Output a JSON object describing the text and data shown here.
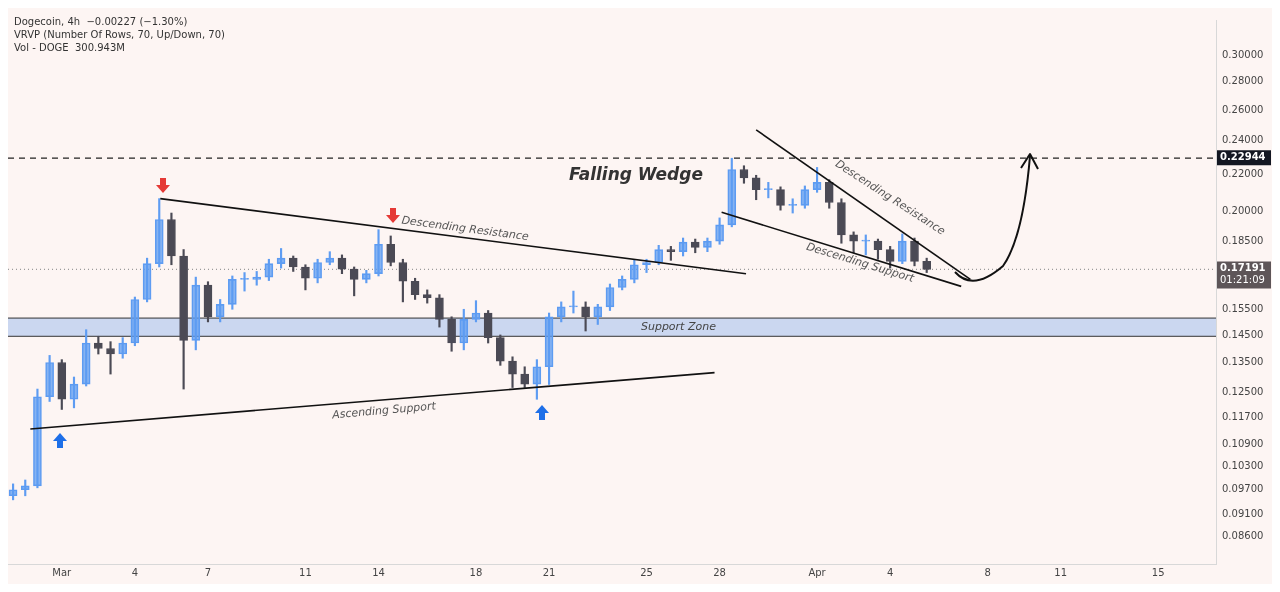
{
  "chart_data": {
    "type": "candlestick",
    "title": "Dogecoin, 4h  −0.00227 (−1.30%)",
    "x": [
      "--02-28T00:00",
      "--02-28T12:00",
      "--02-29T00:00",
      "--02-29T12:00",
      "--03-01T00:00",
      "--03-01T12:00",
      "--03-02T00:00",
      "--03-02T12:00",
      "--03-03T00:00",
      "--03-03T12:00",
      "--03-04T00:00",
      "--03-04T12:00",
      "--03-05T00:00",
      "--03-05T12:00",
      "--03-06T00:00",
      "--03-06T12:00",
      "--03-07T00:00",
      "--03-07T12:00",
      "--03-08T00:00",
      "--03-08T12:00",
      "--03-09T00:00",
      "--03-09T12:00",
      "--03-10T00:00",
      "--03-10T12:00",
      "--03-11T00:00",
      "--03-11T12:00",
      "--03-12T00:00",
      "--03-12T12:00",
      "--03-13T00:00",
      "--03-13T12:00",
      "--03-14T00:00",
      "--03-14T12:00",
      "--03-15T00:00",
      "--03-15T12:00",
      "--03-16T00:00",
      "--03-16T12:00",
      "--03-17T00:00",
      "--03-17T12:00",
      "--03-18T00:00",
      "--03-18T12:00",
      "--03-19T00:00",
      "--03-19T12:00",
      "--03-20T00:00",
      "--03-20T12:00",
      "--03-21T00:00",
      "--03-21T12:00",
      "--03-22T00:00",
      "--03-22T12:00",
      "--03-23T00:00",
      "--03-23T12:00",
      "--03-24T00:00",
      "--03-24T12:00",
      "--03-25T00:00",
      "--03-25T12:00",
      "--03-26T00:00",
      "--03-26T12:00",
      "--03-27T00:00",
      "--03-27T12:00",
      "--03-28T00:00",
      "--03-28T12:00",
      "--03-29T00:00",
      "--03-29T12:00",
      "--03-30T00:00",
      "--03-30T12:00",
      "--03-31T00:00",
      "--03-31T12:00",
      "--04-01T00:00",
      "--04-01T12:00",
      "--04-02T00:00",
      "--04-02T12:00",
      "--04-03T00:00",
      "--04-03T12:00",
      "--04-04T00:00",
      "--04-04T12:00",
      "--04-05T00:00",
      "--04-05T12:00"
    ],
    "ohlc": [
      [
        0.0955,
        0.0985,
        0.0945,
        0.097
      ],
      [
        0.097,
        0.0995,
        0.0955,
        0.098
      ],
      [
        0.098,
        0.126,
        0.0975,
        0.1235
      ],
      [
        0.1235,
        0.1375,
        0.122,
        0.135
      ],
      [
        0.135,
        0.136,
        0.1195,
        0.1227
      ],
      [
        0.1227,
        0.13,
        0.12,
        0.1276
      ],
      [
        0.1276,
        0.147,
        0.127,
        0.142
      ],
      [
        0.142,
        0.1445,
        0.138,
        0.14
      ],
      [
        0.14,
        0.1425,
        0.131,
        0.138
      ],
      [
        0.138,
        0.144,
        0.1365,
        0.142
      ],
      [
        0.142,
        0.16,
        0.141,
        0.159
      ],
      [
        0.159,
        0.177,
        0.158,
        0.1745
      ],
      [
        0.1745,
        0.2066,
        0.173,
        0.1957
      ],
      [
        0.1957,
        0.199,
        0.174,
        0.178
      ],
      [
        0.178,
        0.181,
        0.126,
        0.143
      ],
      [
        0.143,
        0.1685,
        0.1395,
        0.165
      ],
      [
        0.165,
        0.1665,
        0.15,
        0.152
      ],
      [
        0.152,
        0.159,
        0.15,
        0.157
      ],
      [
        0.157,
        0.169,
        0.155,
        0.1675
      ],
      [
        0.1675,
        0.1705,
        0.1625,
        0.1675
      ],
      [
        0.1675,
        0.171,
        0.165,
        0.1685
      ],
      [
        0.1685,
        0.1765,
        0.167,
        0.1745
      ],
      [
        0.1745,
        0.1815,
        0.1725,
        0.177
      ],
      [
        0.177,
        0.178,
        0.171,
        0.173
      ],
      [
        0.173,
        0.174,
        0.163,
        0.168
      ],
      [
        0.168,
        0.1765,
        0.166,
        0.175
      ],
      [
        0.175,
        0.18,
        0.174,
        0.177
      ],
      [
        0.177,
        0.1785,
        0.17,
        0.172
      ],
      [
        0.172,
        0.173,
        0.1605,
        0.1675
      ],
      [
        0.1675,
        0.1715,
        0.166,
        0.17
      ],
      [
        0.17,
        0.1906,
        0.169,
        0.1835
      ],
      [
        0.1835,
        0.1875,
        0.1735,
        0.175
      ],
      [
        0.175,
        0.1765,
        0.158,
        0.1667
      ],
      [
        0.1667,
        0.168,
        0.159,
        0.161
      ],
      [
        0.161,
        0.163,
        0.1575,
        0.1597
      ],
      [
        0.1597,
        0.161,
        0.148,
        0.151
      ],
      [
        0.151,
        0.152,
        0.139,
        0.142
      ],
      [
        0.142,
        0.155,
        0.1395,
        0.151
      ],
      [
        0.151,
        0.1585,
        0.15,
        0.1535
      ],
      [
        0.1535,
        0.1545,
        0.142,
        0.144
      ],
      [
        0.144,
        0.145,
        0.134,
        0.1355
      ],
      [
        0.1355,
        0.137,
        0.1265,
        0.131
      ],
      [
        0.131,
        0.1335,
        0.1265,
        0.1276
      ],
      [
        0.1276,
        0.136,
        0.1227,
        0.1335
      ],
      [
        0.1335,
        0.1535,
        0.1275,
        0.152
      ],
      [
        0.152,
        0.158,
        0.15,
        0.156
      ],
      [
        0.156,
        0.1625,
        0.1535,
        0.156
      ],
      [
        0.156,
        0.158,
        0.1465,
        0.152
      ],
      [
        0.152,
        0.157,
        0.149,
        0.156
      ],
      [
        0.156,
        0.1655,
        0.1545,
        0.164
      ],
      [
        0.164,
        0.169,
        0.163,
        0.1675
      ],
      [
        0.1675,
        0.176,
        0.166,
        0.174
      ],
      [
        0.174,
        0.1765,
        0.1705,
        0.175
      ],
      [
        0.175,
        0.183,
        0.174,
        0.181
      ],
      [
        0.181,
        0.1825,
        0.176,
        0.18
      ],
      [
        0.18,
        0.1865,
        0.178,
        0.1845
      ],
      [
        0.1845,
        0.186,
        0.1795,
        0.182
      ],
      [
        0.182,
        0.1865,
        0.18,
        0.185
      ],
      [
        0.185,
        0.1965,
        0.1835,
        0.193
      ],
      [
        0.193,
        0.22944,
        0.192,
        0.2228
      ],
      [
        0.2228,
        0.225,
        0.215,
        0.218
      ],
      [
        0.218,
        0.2195,
        0.206,
        0.2115
      ],
      [
        0.2115,
        0.2155,
        0.207,
        0.2115
      ],
      [
        0.2115,
        0.213,
        0.2005,
        0.203
      ],
      [
        0.203,
        0.2065,
        0.199,
        0.203
      ],
      [
        0.203,
        0.2135,
        0.2015,
        0.2115
      ],
      [
        0.2115,
        0.224,
        0.21,
        0.2155
      ],
      [
        0.2155,
        0.217,
        0.2015,
        0.2045
      ],
      [
        0.2045,
        0.2065,
        0.184,
        0.188
      ],
      [
        0.188,
        0.1895,
        0.1795,
        0.185
      ],
      [
        0.185,
        0.188,
        0.1785,
        0.185
      ],
      [
        0.185,
        0.186,
        0.1765,
        0.181
      ],
      [
        0.181,
        0.1825,
        0.1725,
        0.1755
      ],
      [
        0.1755,
        0.1885,
        0.1745,
        0.185
      ],
      [
        0.185,
        0.1865,
        0.1735,
        0.1755
      ],
      [
        0.1755,
        0.177,
        0.1705,
        0.17191
      ]
    ],
    "series": [
      {
        "type": "line",
        "color": "#111111",
        "x": [
          "--03-05T01:00",
          "--03-29T02:00"
        ],
        "values": [
          0.2066,
          0.17
        ]
      },
      {
        "type": "line",
        "color": "#111111",
        "x": [
          "--02-28T17:00",
          "--03-27T19:00"
        ],
        "values": [
          0.1136,
          0.1315
        ]
      },
      {
        "type": "line",
        "color": "#111111",
        "x": [
          "--03-29T12:00",
          "--04-07T07:00"
        ],
        "values": [
          0.247,
          0.1675
        ]
      },
      {
        "type": "line",
        "color": "#111111",
        "x": [
          "--03-28T02:00",
          "--04-06T22:00"
        ],
        "values": [
          0.1994,
          0.1645
        ]
      }
    ],
    "xlim": [
      "--02-27T19:00",
      "--04-17T09:00"
    ],
    "xticks": [
      {
        "value": "--03-01",
        "label": "Mar"
      },
      {
        "value": "--03-04",
        "label": "4"
      },
      {
        "value": "--03-07",
        "label": "7"
      },
      {
        "value": "--03-11",
        "label": "11"
      },
      {
        "value": "--03-14",
        "label": "14"
      },
      {
        "value": "--03-18",
        "label": "18"
      },
      {
        "value": "--03-21",
        "label": "21"
      },
      {
        "value": "--03-25",
        "label": "25"
      },
      {
        "value": "--03-28",
        "label": "28"
      },
      {
        "value": "--04-01",
        "label": "Apr"
      },
      {
        "value": "--04-04",
        "label": "4"
      },
      {
        "value": "--04-08",
        "label": "8"
      },
      {
        "value": "--04-11",
        "label": "11"
      },
      {
        "value": "--04-15",
        "label": "15"
      }
    ],
    "ylim": [
      0.08,
      0.3285
    ],
    "yticks": [
      {
        "value": 0.3,
        "label": "0.30000"
      },
      {
        "value": 0.28,
        "label": "0.28000"
      },
      {
        "value": 0.26,
        "label": "0.26000"
      },
      {
        "value": 0.24,
        "label": "0.24000"
      },
      {
        "value": 0.22,
        "label": "0.22000"
      },
      {
        "value": 0.2,
        "label": "0.20000"
      },
      {
        "value": 0.185,
        "label": "0.18500"
      },
      {
        "value": 0.155,
        "label": "0.15500"
      },
      {
        "value": 0.145,
        "label": "0.14500"
      },
      {
        "value": 0.135,
        "label": "0.13500"
      },
      {
        "value": 0.125,
        "label": "0.12500"
      },
      {
        "value": 0.117,
        "label": "0.11700"
      },
      {
        "value": 0.109,
        "label": "0.10900"
      },
      {
        "value": 0.103,
        "label": "0.10300"
      },
      {
        "value": 0.097,
        "label": "0.09700"
      },
      {
        "value": 0.091,
        "label": "0.09100"
      },
      {
        "value": 0.086,
        "label": "0.08600"
      }
    ],
    "log": true,
    "marker": "none",
    "line_style": "solid",
    "bands": [
      {
        "axis": "y",
        "from": 0.1445,
        "to": 0.1515,
        "label": "Support Zone",
        "color": "#8fb4ee"
      }
    ],
    "ref_lines": [
      {
        "axis": "y",
        "value": 0.22944,
        "label": "0.22944",
        "color": "#222222",
        "line_style": "dashed"
      },
      {
        "axis": "y",
        "value": 0.17191,
        "label": "0.17191\n01:21:09",
        "color": "#9a9a9a",
        "line_style": "dotted"
      }
    ],
    "annotations": [
      "VRVP (Number Of Rows, 70, Up/Down, 70)",
      "Vol - DOGE  300.943M",
      "Falling Wedge",
      "Descending Resistance",
      "Ascending Support",
      "Descending Support",
      "Descending Resistance"
    ],
    "legend": false
  }
}
